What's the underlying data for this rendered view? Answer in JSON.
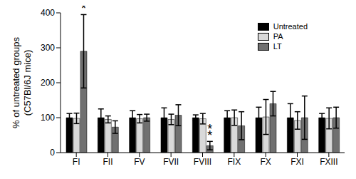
{
  "chart_data": {
    "type": "bar",
    "ylabel": [
      "% of untreated groups",
      "(C57Bl/6J mice)"
    ],
    "categories": [
      "FI",
      "FII",
      "FV",
      "FVII",
      "FVIII",
      "FIX",
      "FX",
      "FXI",
      "FXIII"
    ],
    "series": [
      {
        "name": "Untreated",
        "color": "#000000",
        "values": [
          100,
          100,
          100,
          100,
          100,
          100,
          100,
          100,
          100
        ],
        "errors": [
          12,
          25,
          20,
          28,
          8,
          20,
          30,
          40,
          12
        ]
      },
      {
        "name": "PA",
        "color": "#d9d9d9",
        "values": [
          98,
          95,
          97,
          95,
          97,
          100,
          102,
          92,
          98
        ],
        "errors": [
          15,
          10,
          12,
          15,
          15,
          22,
          50,
          25,
          30
        ]
      },
      {
        "name": "LT",
        "color": "#707070",
        "values": [
          290,
          73,
          100,
          107,
          20,
          77,
          140,
          100,
          100
        ],
        "errors": [
          105,
          18,
          10,
          30,
          12,
          40,
          35,
          62,
          30
        ]
      }
    ],
    "ylim": [
      0,
      400
    ],
    "yticks": [
      0,
      100,
      200,
      300,
      400
    ],
    "legend": "upper right",
    "annotations": [
      {
        "text": "*",
        "category": "FI",
        "series": "LT"
      },
      {
        "text": "**",
        "category": "FVIII",
        "series": "LT"
      }
    ]
  }
}
